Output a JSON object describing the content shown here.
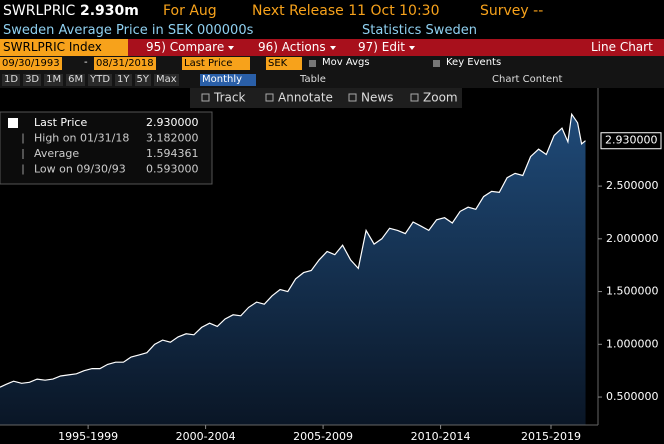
{
  "header": {
    "ticker": "SWRLPRIC",
    "value": "2.930m",
    "period": "For Aug",
    "next_release": "Next Release 11 Oct 10:30",
    "survey": "Survey --",
    "description": "Sweden Average Price in SEK 000000s",
    "source": "Statistics Sweden"
  },
  "toolbar": {
    "security": "SWRLPRIC Index",
    "menus": [
      "95) Compare",
      "96) Actions",
      "97) Edit"
    ],
    "view": "Line Chart"
  },
  "controls": {
    "start": "09/30/1993",
    "separator": "-",
    "end": "08/31/2018",
    "field": "Last Price",
    "currency": "SEK",
    "mov_avgs": "Mov Avgs",
    "key_events": "Key Events",
    "ranges": [
      "1D",
      "3D",
      "1M",
      "6M",
      "YTD",
      "1Y",
      "5Y",
      "Max"
    ],
    "frequency": "Monthly",
    "table": "Table",
    "chart_content": "Chart Content"
  },
  "chart_tools": [
    "Track",
    "Annotate",
    "News",
    "Zoom"
  ],
  "legend": [
    {
      "label": "Last Price",
      "value": "2.930000"
    },
    {
      "label": "High on 01/31/18",
      "value": "3.182000"
    },
    {
      "label": "Average",
      "value": "1.594361"
    },
    {
      "label": "Low on 09/30/93",
      "value": "0.593000"
    }
  ],
  "chart_data": {
    "type": "area",
    "color": "#ffffff",
    "x": [
      1993.75,
      1994.0,
      1994.33,
      1994.67,
      1995.0,
      1995.33,
      1995.67,
      1996.0,
      1996.33,
      1996.67,
      1997.0,
      1997.33,
      1997.67,
      1998.0,
      1998.33,
      1998.67,
      1999.0,
      1999.33,
      1999.67,
      2000.0,
      2000.33,
      2000.67,
      2001.0,
      2001.33,
      2001.67,
      2002.0,
      2002.33,
      2002.67,
      2003.0,
      2003.33,
      2003.67,
      2004.0,
      2004.33,
      2004.67,
      2005.0,
      2005.33,
      2005.67,
      2006.0,
      2006.33,
      2006.67,
      2007.0,
      2007.33,
      2007.67,
      2008.0,
      2008.33,
      2008.67,
      2009.0,
      2009.33,
      2009.67,
      2010.0,
      2010.33,
      2010.67,
      2011.0,
      2011.33,
      2011.67,
      2012.0,
      2012.33,
      2012.67,
      2013.0,
      2013.33,
      2013.67,
      2014.0,
      2014.33,
      2014.67,
      2015.0,
      2015.33,
      2015.67,
      2016.0,
      2016.33,
      2016.67,
      2017.0,
      2017.33,
      2017.67,
      2017.92,
      2018.08,
      2018.33,
      2018.5,
      2018.67
    ],
    "values": [
      0.593,
      0.62,
      0.65,
      0.63,
      0.64,
      0.67,
      0.66,
      0.67,
      0.7,
      0.71,
      0.72,
      0.75,
      0.77,
      0.77,
      0.81,
      0.83,
      0.83,
      0.88,
      0.9,
      0.92,
      1.0,
      1.04,
      1.02,
      1.07,
      1.1,
      1.09,
      1.16,
      1.2,
      1.17,
      1.24,
      1.28,
      1.27,
      1.35,
      1.4,
      1.38,
      1.46,
      1.52,
      1.5,
      1.62,
      1.68,
      1.7,
      1.8,
      1.88,
      1.85,
      1.94,
      1.8,
      1.72,
      2.08,
      1.95,
      2.0,
      2.1,
      2.08,
      2.05,
      2.16,
      2.12,
      2.08,
      2.18,
      2.2,
      2.15,
      2.26,
      2.3,
      2.28,
      2.4,
      2.45,
      2.44,
      2.58,
      2.62,
      2.6,
      2.78,
      2.85,
      2.8,
      2.98,
      3.05,
      2.92,
      3.182,
      3.1,
      2.9,
      2.93
    ],
    "xlim": [
      1993.75,
      2019.2
    ],
    "ylim": [
      0.235,
      3.43
    ],
    "xticks": [
      {
        "value": 1997.5,
        "label": "1995-1999"
      },
      {
        "value": 2002.5,
        "label": "2000-2004"
      },
      {
        "value": 2007.5,
        "label": "2005-2009"
      },
      {
        "value": 2012.5,
        "label": "2010-2014"
      },
      {
        "value": 2017.2,
        "label": "2015-2019"
      }
    ],
    "yticks": [
      {
        "value": 0.5,
        "label": "0.500000"
      },
      {
        "value": 1.0,
        "label": "1.000000"
      },
      {
        "value": 1.5,
        "label": "1.500000"
      },
      {
        "value": 2.0,
        "label": "2.000000"
      },
      {
        "value": 2.5,
        "label": "2.500000"
      }
    ],
    "last_label": {
      "value": 2.93,
      "label": "2.930000"
    }
  }
}
